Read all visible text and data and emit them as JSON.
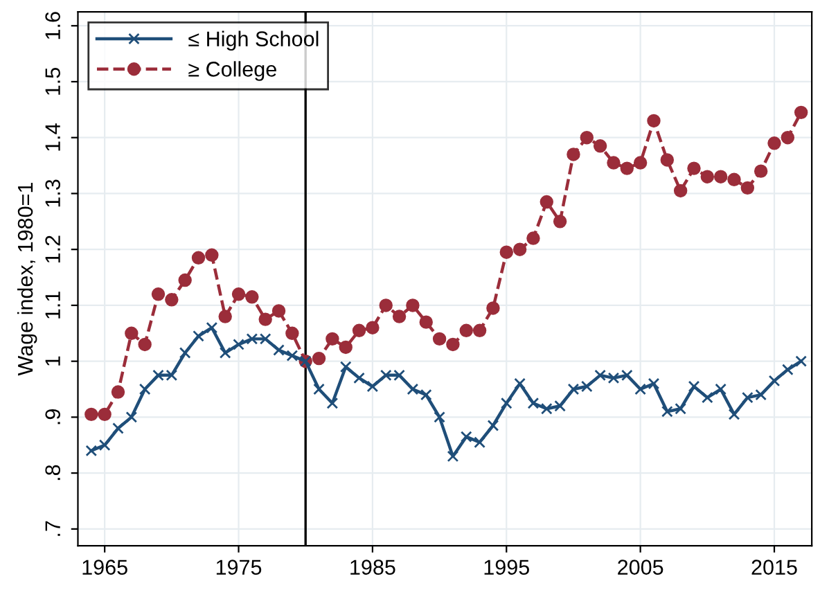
{
  "chart_data": {
    "type": "line",
    "ylabel": "Wage index, 1980=1",
    "x": [
      1964,
      1965,
      1966,
      1967,
      1968,
      1969,
      1970,
      1971,
      1972,
      1973,
      1974,
      1975,
      1976,
      1977,
      1978,
      1979,
      1980,
      1981,
      1982,
      1983,
      1984,
      1985,
      1986,
      1987,
      1988,
      1989,
      1990,
      1991,
      1992,
      1993,
      1994,
      1995,
      1996,
      1997,
      1998,
      1999,
      2000,
      2001,
      2002,
      2003,
      2004,
      2005,
      2006,
      2007,
      2008,
      2009,
      2010,
      2011,
      2012,
      2013,
      2014,
      2015,
      2016,
      2017
    ],
    "series": [
      {
        "name": "≤ High School",
        "color": "#1f4e79",
        "marker": "cross",
        "line_style": "solid",
        "values": [
          0.84,
          0.85,
          0.88,
          0.9,
          0.95,
          0.975,
          0.975,
          1.015,
          1.045,
          1.06,
          1.015,
          1.03,
          1.04,
          1.04,
          1.02,
          1.01,
          1.0,
          0.95,
          0.925,
          0.99,
          0.97,
          0.955,
          0.975,
          0.975,
          0.95,
          0.94,
          0.9,
          0.83,
          0.865,
          0.855,
          0.885,
          0.925,
          0.96,
          0.925,
          0.915,
          0.92,
          0.95,
          0.955,
          0.975,
          0.97,
          0.975,
          0.95,
          0.96,
          0.91,
          0.915,
          0.955,
          0.935,
          0.95,
          0.905,
          0.935,
          0.94,
          0.965,
          0.985,
          1.0
        ]
      },
      {
        "name": "≥ College",
        "color": "#9b2d3a",
        "marker": "circle",
        "line_style": "dashed",
        "values": [
          0.905,
          0.905,
          0.945,
          1.05,
          1.03,
          1.12,
          1.11,
          1.145,
          1.185,
          1.19,
          1.08,
          1.12,
          1.115,
          1.075,
          1.09,
          1.05,
          1.0,
          1.005,
          1.04,
          1.025,
          1.055,
          1.06,
          1.1,
          1.08,
          1.1,
          1.07,
          1.04,
          1.03,
          1.055,
          1.055,
          1.095,
          1.195,
          1.2,
          1.22,
          1.285,
          1.25,
          1.37,
          1.4,
          1.385,
          1.355,
          1.345,
          1.355,
          1.43,
          1.36,
          1.305,
          1.345,
          1.33,
          1.33,
          1.325,
          1.31,
          1.34,
          1.39,
          1.4,
          1.445
        ]
      }
    ],
    "xlim": [
      1963,
      2017.8
    ],
    "xticks": [
      1965,
      1975,
      1985,
      1995,
      2005,
      2015
    ],
    "ylim": [
      0.67,
      1.625
    ],
    "yticks": [
      {
        "value": 0.7,
        "label": ".7"
      },
      {
        "value": 0.8,
        "label": ".8"
      },
      {
        "value": 0.9,
        "label": ".9"
      },
      1,
      1.1,
      1.2,
      1.3,
      1.4,
      1.5,
      1.6
    ],
    "ref_lines": [
      {
        "axis": "x",
        "value": 1980,
        "color": "#000000",
        "line_style": "solid"
      }
    ],
    "grid": true,
    "legend": "top left"
  }
}
